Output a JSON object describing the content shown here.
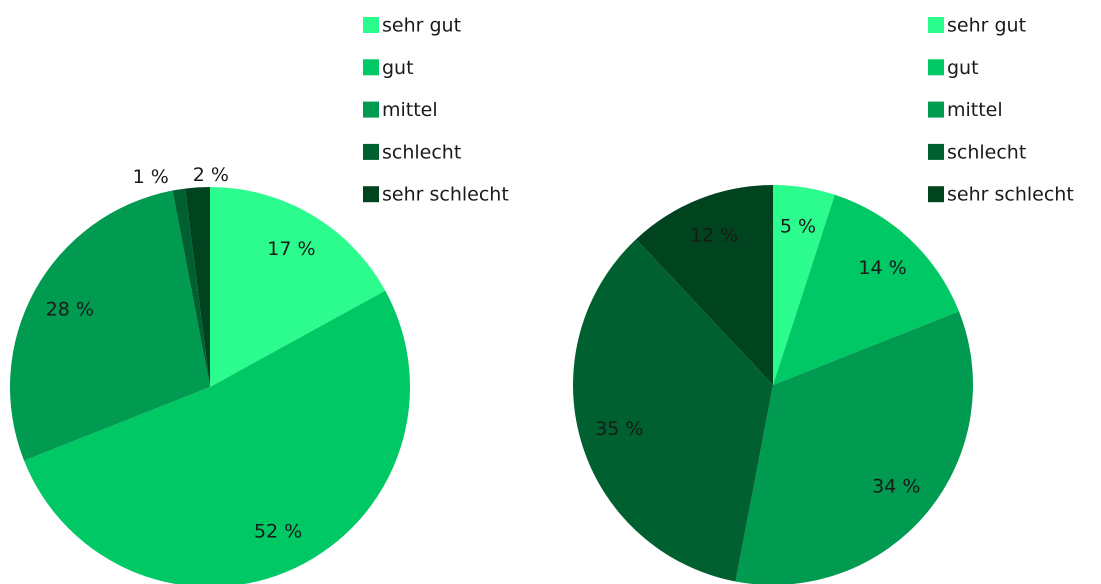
{
  "chart_data": [
    {
      "type": "pie",
      "categories": [
        "sehr gut",
        "gut",
        "mittel",
        "schlecht",
        "sehr schlecht"
      ],
      "values": [
        17,
        52,
        28,
        1,
        2
      ],
      "value_labels": [
        "17 %",
        "52 %",
        "28 %",
        "1 %",
        "2 %"
      ],
      "colors": [
        "#2cfc8e",
        "#00c864",
        "#009a50",
        "#006030",
        "#00441f"
      ]
    },
    {
      "type": "pie",
      "categories": [
        "sehr gut",
        "gut",
        "mittel",
        "schlecht",
        "sehr schlecht"
      ],
      "values": [
        5,
        14,
        34,
        35,
        12
      ],
      "value_labels": [
        "5 %",
        "14 %",
        "34 %",
        "35 %",
        "12 %"
      ],
      "colors": [
        "#2cfc8e",
        "#00c864",
        "#009a50",
        "#006030",
        "#00441f"
      ]
    }
  ]
}
